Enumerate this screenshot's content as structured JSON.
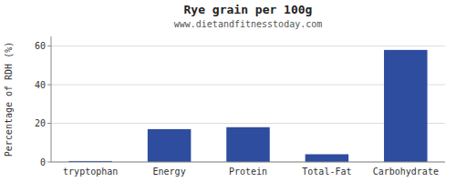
{
  "chart_data": {
    "type": "bar",
    "title": "Rye grain per 100g",
    "subtitle": "www.dietandfitnesstoday.com",
    "categories": [
      "tryptophan",
      "Energy",
      "Protein",
      "Total-Fat",
      "Carbohydrate"
    ],
    "values": [
      0.5,
      17,
      18,
      4,
      58
    ],
    "color": "#2e4d9e",
    "ylabel": "Percentage of RDH (%)",
    "ylim": [
      0,
      65
    ],
    "yticks": [
      0,
      20,
      40,
      60
    ],
    "grid": true
  }
}
